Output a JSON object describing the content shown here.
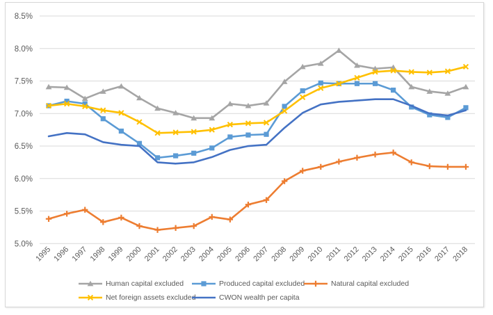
{
  "chart_data": {
    "type": "line",
    "title": "",
    "categories": [
      "1995",
      "1996",
      "1997",
      "1998",
      "1999",
      "2000",
      "2001",
      "2002",
      "2003",
      "2004",
      "2005",
      "2006",
      "2007",
      "2008",
      "2009",
      "2010",
      "2011",
      "2012",
      "2013",
      "2014",
      "2015",
      "2016",
      "2017",
      "2018"
    ],
    "ylim": [
      5.0,
      8.5
    ],
    "y_ticks": [
      {
        "label": "8.5%",
        "value": 8.5
      },
      {
        "label": "8.0%",
        "value": 8.0
      },
      {
        "label": "7.5%",
        "value": 7.5
      },
      {
        "label": "7.0%",
        "value": 7.0
      },
      {
        "label": "6.5%",
        "value": 6.5
      },
      {
        "label": "6.0%",
        "value": 6.0
      },
      {
        "label": "5.5%",
        "value": 5.5
      },
      {
        "label": "5.0%",
        "value": 5.0
      }
    ],
    "grid": "horizontal",
    "legend_position": "bottom",
    "colors": {
      "gridline": "#d9d9d9",
      "axis_text": "#595959",
      "frame_border": "#d7d7d7"
    },
    "series": [
      {
        "id": "human-capital-excluded",
        "name": "Human capital excluded",
        "color": "#a5a5a5",
        "marker": "triangle",
        "values": [
          7.41,
          7.4,
          7.23,
          7.34,
          7.42,
          7.24,
          7.08,
          7.01,
          6.93,
          6.93,
          7.15,
          7.12,
          7.16,
          7.49,
          7.72,
          7.77,
          7.97,
          7.74,
          7.69,
          7.71,
          7.41,
          7.34,
          7.31,
          7.41
        ]
      },
      {
        "id": "produced-capital-excluded",
        "name": "Produced capital excluded",
        "color": "#5b9bd5",
        "marker": "square",
        "values": [
          7.12,
          7.19,
          7.15,
          6.92,
          6.73,
          6.54,
          6.32,
          6.35,
          6.39,
          6.47,
          6.64,
          6.67,
          6.68,
          7.11,
          7.35,
          7.47,
          7.46,
          7.46,
          7.46,
          7.36,
          7.1,
          6.98,
          6.94,
          7.09
        ]
      },
      {
        "id": "natural-capital-excluded",
        "name": "Natural capital excluded",
        "color": "#ed7d31",
        "marker": "plus",
        "values": [
          5.38,
          5.46,
          5.52,
          5.33,
          5.4,
          5.27,
          5.21,
          5.24,
          5.27,
          5.41,
          5.37,
          5.6,
          5.67,
          5.96,
          6.12,
          6.18,
          6.26,
          6.32,
          6.37,
          6.4,
          6.25,
          6.19,
          6.18,
          6.18
        ]
      },
      {
        "id": "net-foreign-assets-excluded",
        "name": "Net foreign assets excluded",
        "color": "#ffc000",
        "marker": "x",
        "values": [
          7.12,
          7.15,
          7.11,
          7.05,
          7.01,
          6.87,
          6.7,
          6.71,
          6.72,
          6.75,
          6.83,
          6.85,
          6.86,
          7.04,
          7.25,
          7.39,
          7.46,
          7.55,
          7.64,
          7.66,
          7.64,
          7.63,
          7.65,
          7.72
        ]
      },
      {
        "id": "cwon-wealth-per-capita",
        "name": "CWON wealth per capita",
        "color": "#4472c4",
        "marker": "none",
        "values": [
          6.65,
          6.7,
          6.68,
          6.56,
          6.52,
          6.5,
          6.25,
          6.23,
          6.25,
          6.33,
          6.44,
          6.5,
          6.52,
          6.78,
          7.01,
          7.14,
          7.18,
          7.2,
          7.22,
          7.22,
          7.12,
          7.0,
          6.97,
          7.05
        ]
      }
    ]
  }
}
